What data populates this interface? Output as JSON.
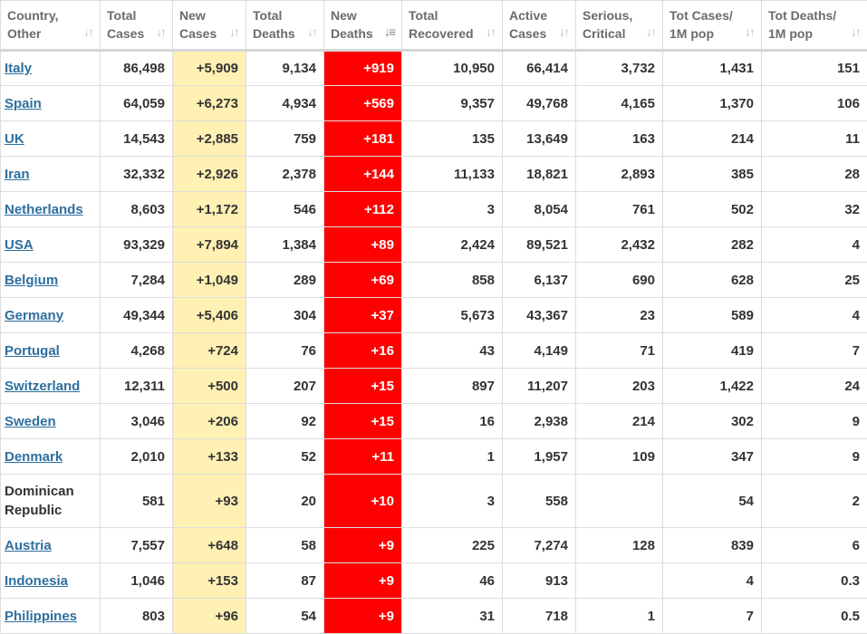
{
  "colors": {
    "new_cases_bg": "#fff0b3",
    "new_deaths_bg": "#ff0000",
    "link": "#2e6f9e",
    "header_text": "#6b6b6b"
  },
  "table": {
    "columns": [
      {
        "line1": "Country,",
        "line2": "Other"
      },
      {
        "line1": "Total",
        "line2": "Cases"
      },
      {
        "line1": "New",
        "line2": "Cases"
      },
      {
        "line1": "Total",
        "line2": "Deaths"
      },
      {
        "line1": "New",
        "line2": "Deaths"
      },
      {
        "line1": "Total",
        "line2": "Recovered"
      },
      {
        "line1": "Active",
        "line2": "Cases"
      },
      {
        "line1": "Serious,",
        "line2": "Critical"
      },
      {
        "line1": "Tot Cases/",
        "line2": "1M pop"
      },
      {
        "line1": "Tot Deaths/",
        "line2": "1M pop"
      }
    ],
    "sorted_column": "New Deaths",
    "sort_icon": "sort-updown-icon",
    "rows": [
      [
        "Italy",
        "86,498",
        "+5,909",
        "9,134",
        "+919",
        "10,950",
        "66,414",
        "3,732",
        "1,431",
        "151"
      ],
      [
        "Spain",
        "64,059",
        "+6,273",
        "4,934",
        "+569",
        "9,357",
        "49,768",
        "4,165",
        "1,370",
        "106"
      ],
      [
        "UK",
        "14,543",
        "+2,885",
        "759",
        "+181",
        "135",
        "13,649",
        "163",
        "214",
        "11"
      ],
      [
        "Iran",
        "32,332",
        "+2,926",
        "2,378",
        "+144",
        "11,133",
        "18,821",
        "2,893",
        "385",
        "28"
      ],
      [
        "Netherlands",
        "8,603",
        "+1,172",
        "546",
        "+112",
        "3",
        "8,054",
        "761",
        "502",
        "32"
      ],
      [
        "USA",
        "93,329",
        "+7,894",
        "1,384",
        "+89",
        "2,424",
        "89,521",
        "2,432",
        "282",
        "4"
      ],
      [
        "Belgium",
        "7,284",
        "+1,049",
        "289",
        "+69",
        "858",
        "6,137",
        "690",
        "628",
        "25"
      ],
      [
        "Germany",
        "49,344",
        "+5,406",
        "304",
        "+37",
        "5,673",
        "43,367",
        "23",
        "589",
        "4"
      ],
      [
        "Portugal",
        "4,268",
        "+724",
        "76",
        "+16",
        "43",
        "4,149",
        "71",
        "419",
        "7"
      ],
      [
        "Switzerland",
        "12,311",
        "+500",
        "207",
        "+15",
        "897",
        "11,207",
        "203",
        "1,422",
        "24"
      ],
      [
        "Sweden",
        "3,046",
        "+206",
        "92",
        "+15",
        "16",
        "2,938",
        "214",
        "302",
        "9"
      ],
      [
        "Denmark",
        "2,010",
        "+133",
        "52",
        "+11",
        "1",
        "1,957",
        "109",
        "347",
        "9"
      ],
      [
        "Dominican Republic",
        "581",
        "+93",
        "20",
        "+10",
        "3",
        "558",
        "",
        "54",
        "2"
      ],
      [
        "Austria",
        "7,557",
        "+648",
        "58",
        "+9",
        "225",
        "7,274",
        "128",
        "839",
        "6"
      ],
      [
        "Indonesia",
        "1,046",
        "+153",
        "87",
        "+9",
        "46",
        "913",
        "",
        "4",
        "0.3"
      ],
      [
        "Philippines",
        "803",
        "+96",
        "54",
        "+9",
        "31",
        "718",
        "1",
        "7",
        "0.5"
      ]
    ],
    "linked_countries": [
      "Italy",
      "Spain",
      "UK",
      "Iran",
      "Netherlands",
      "USA",
      "Belgium",
      "Germany",
      "Portugal",
      "Switzerland",
      "Sweden",
      "Denmark",
      "Austria",
      "Indonesia",
      "Philippines"
    ]
  }
}
